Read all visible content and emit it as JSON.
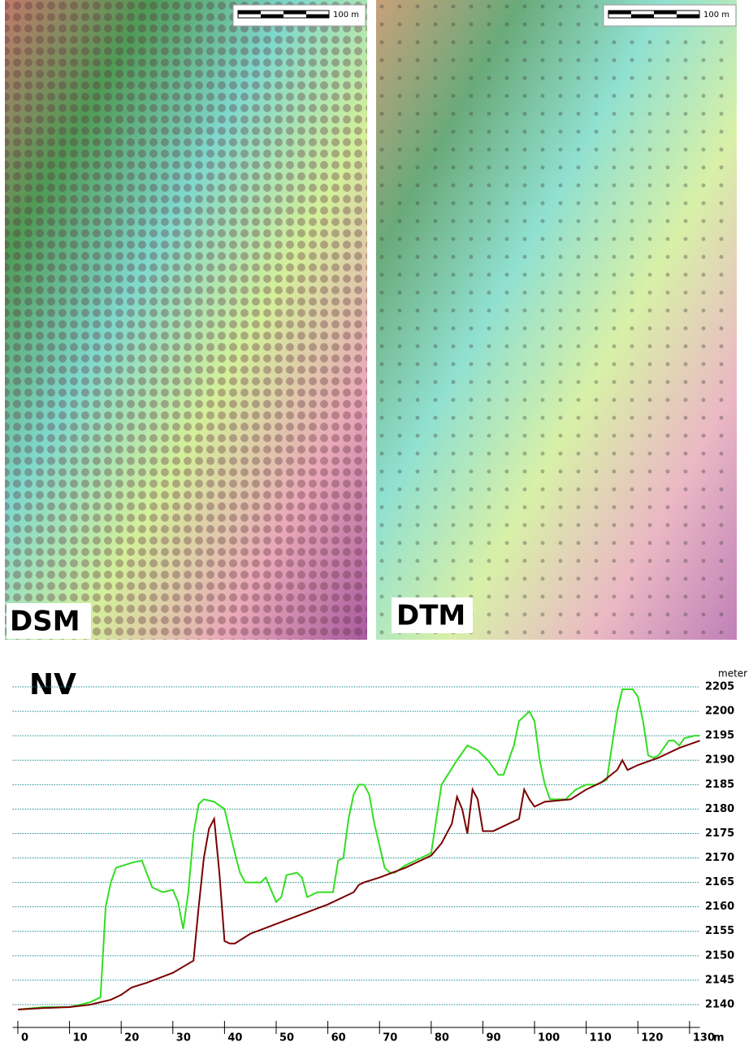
{
  "maps": [
    {
      "label": "DSM",
      "scale": "100 m"
    },
    {
      "label": "DTM",
      "scale": "100 m"
    }
  ],
  "chart_data": {
    "type": "line",
    "title": "NV",
    "xlabel": "m",
    "ylabel": "meter",
    "xlim": [
      -1,
      132
    ],
    "xticks": [
      0,
      10,
      20,
      30,
      40,
      50,
      60,
      70,
      80,
      90,
      100,
      110,
      120,
      130
    ],
    "ylim": [
      2137,
      2207
    ],
    "yticks": [
      2140,
      2145,
      2150,
      2155,
      2160,
      2165,
      2170,
      2175,
      2180,
      2185,
      2190,
      2195,
      2200,
      2205
    ],
    "grid": true,
    "series": [
      {
        "color": "#33dd22",
        "x": [
          0,
          5,
          10,
          14,
          16,
          17,
          18,
          19,
          22,
          24,
          26,
          28,
          30,
          31,
          32,
          33,
          34,
          35,
          36,
          38,
          40,
          42,
          43,
          44,
          47,
          48,
          50,
          51,
          52,
          54,
          55,
          56,
          58,
          61,
          62,
          63,
          64,
          65,
          66,
          67,
          68,
          69,
          71,
          72,
          73,
          75,
          80,
          81,
          82,
          85,
          87,
          89,
          91,
          93,
          94,
          96,
          97,
          99,
          100,
          101,
          102,
          103,
          106,
          108,
          110,
          112,
          114,
          115,
          116,
          117,
          119,
          120,
          121,
          122,
          123,
          124,
          126,
          127,
          128,
          129,
          131,
          132
        ],
        "values": [
          2139,
          2139.5,
          2139.5,
          2140.5,
          2141.5,
          2160,
          2165,
          2168,
          2169,
          2169.5,
          2164,
          2163,
          2163.5,
          2161,
          2155.5,
          2163,
          2175,
          2181,
          2182,
          2181.5,
          2180,
          2171,
          2167,
          2165,
          2165,
          2166,
          2161,
          2162,
          2166.5,
          2167,
          2166,
          2162,
          2163,
          2163,
          2169.5,
          2170,
          2178,
          2183,
          2185,
          2185,
          2183,
          2177,
          2168,
          2167,
          2167,
          2168.5,
          2171,
          2178,
          2185,
          2190,
          2193,
          2192,
          2190,
          2187,
          2187,
          2193,
          2198,
          2200,
          2198,
          2190,
          2185,
          2182,
          2182,
          2184,
          2185,
          2185,
          2186,
          2193,
          2200,
          2204.5,
          2204.5,
          2203,
          2198,
          2191,
          2190.5,
          2191,
          2194,
          2194,
          2193,
          2194.5,
          2195,
          2195
        ]
      },
      {
        "color": "#7a0000",
        "x": [
          0,
          5,
          10,
          14,
          18,
          20,
          22,
          25,
          30,
          34,
          35,
          36,
          37,
          38,
          39,
          40,
          41,
          42,
          45,
          50,
          55,
          60,
          65,
          66,
          67,
          70,
          75,
          80,
          82,
          84,
          85,
          86,
          87,
          88,
          89,
          90,
          92,
          95,
          97,
          98,
          99,
          100,
          102,
          107,
          110,
          113,
          116,
          117,
          118,
          120,
          124,
          128,
          132
        ],
        "values": [
          2139,
          2139.3,
          2139.5,
          2140,
          2141,
          2142,
          2143.5,
          2144.5,
          2146.5,
          2149,
          2160,
          2170,
          2176,
          2178,
          2167,
          2153,
          2152.5,
          2152.5,
          2154.5,
          2156.5,
          2158.5,
          2160.5,
          2163,
          2164.5,
          2165,
          2166,
          2168,
          2170.5,
          2173,
          2177,
          2182.5,
          2180,
          2175,
          2184,
          2182,
          2175.5,
          2175.5,
          2177,
          2178,
          2184,
          2182,
          2180.5,
          2181.5,
          2182,
          2184,
          2185.5,
          2188,
          2190,
          2188,
          2189,
          2190.5,
          2192.5,
          2194
        ]
      }
    ]
  }
}
